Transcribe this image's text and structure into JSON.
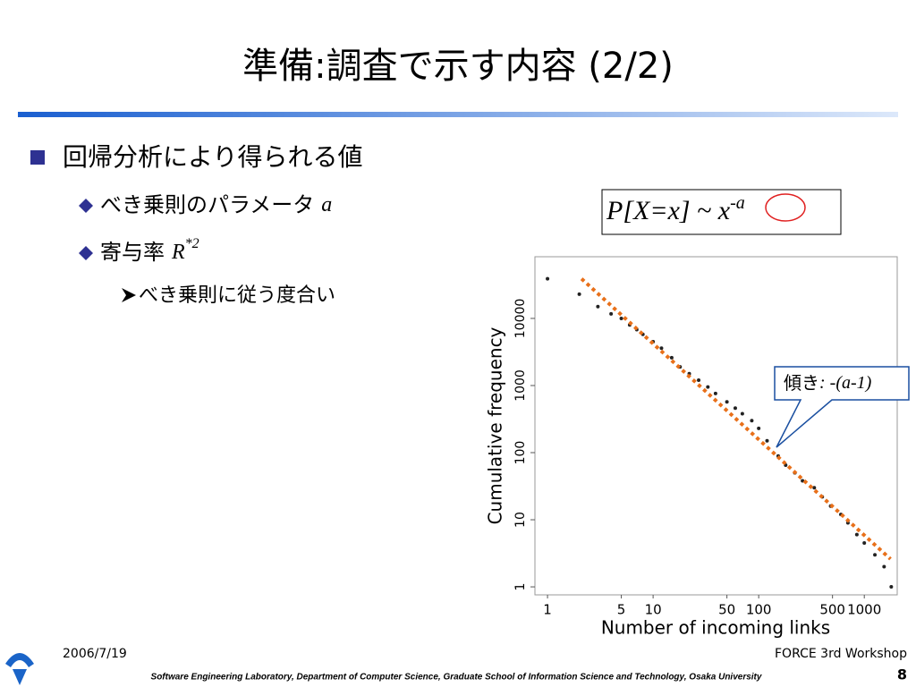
{
  "header": {
    "title": "準備:調査で示す内容 (2/2)"
  },
  "bullets": [
    {
      "text": "回帰分析により得られる値"
    },
    {
      "text": "べき乗則のパラメータ",
      "symbol": "a"
    },
    {
      "text": "寄与率",
      "symbol": "R",
      "sup": "*2"
    },
    {
      "text": "べき乗則に従う度合い"
    }
  ],
  "formula": {
    "text": "P[X=x] ~ x",
    "sup": "-a"
  },
  "callout": {
    "text": "傾き",
    "formula": ": -(a-1)"
  },
  "chart_data": {
    "type": "scatter",
    "xlabel": "Number of incoming links",
    "ylabel": "Cumulative frequency",
    "xlog": true,
    "ylog": true,
    "xlim": [
      0.76,
      2050
    ],
    "ylim": [
      0.76,
      83000
    ],
    "xticks": [
      1,
      5,
      10,
      50,
      100,
      500,
      1000
    ],
    "yticks": [
      1,
      10,
      100,
      1000,
      10000
    ],
    "series": [
      {
        "color": "#222222",
        "style": "points",
        "x": [
          1,
          2,
          3,
          4,
          5,
          6,
          7,
          8,
          10,
          12,
          15,
          18,
          22,
          27,
          33,
          39,
          50,
          60,
          70,
          86,
          100,
          120,
          153,
          180,
          220,
          260,
          336,
          400,
          480,
          600,
          700,
          850,
          1000,
          1260,
          1540,
          1800
        ],
        "values": [
          39000,
          23000,
          15000,
          11700,
          10000,
          8000,
          6800,
          5800,
          4500,
          3600,
          2600,
          1900,
          1500,
          1200,
          950,
          760,
          570,
          460,
          380,
          300,
          230,
          150,
          89,
          65,
          50,
          38,
          30,
          22,
          16,
          12,
          9,
          6,
          4.5,
          3,
          2,
          1
        ]
      },
      {
        "color": "#e8701a",
        "style": "dotted-line",
        "x": [
          2.1,
          1770
        ],
        "values": [
          39000,
          2.6
        ]
      }
    ]
  },
  "footer": {
    "date": "2006/7/19",
    "event": "FORCE 3rd Workshop",
    "affiliation": "Software Engineering Laboratory,  Department of Computer Science,  Graduate School of Information Science and Technology,  Osaka University",
    "page": "8"
  }
}
